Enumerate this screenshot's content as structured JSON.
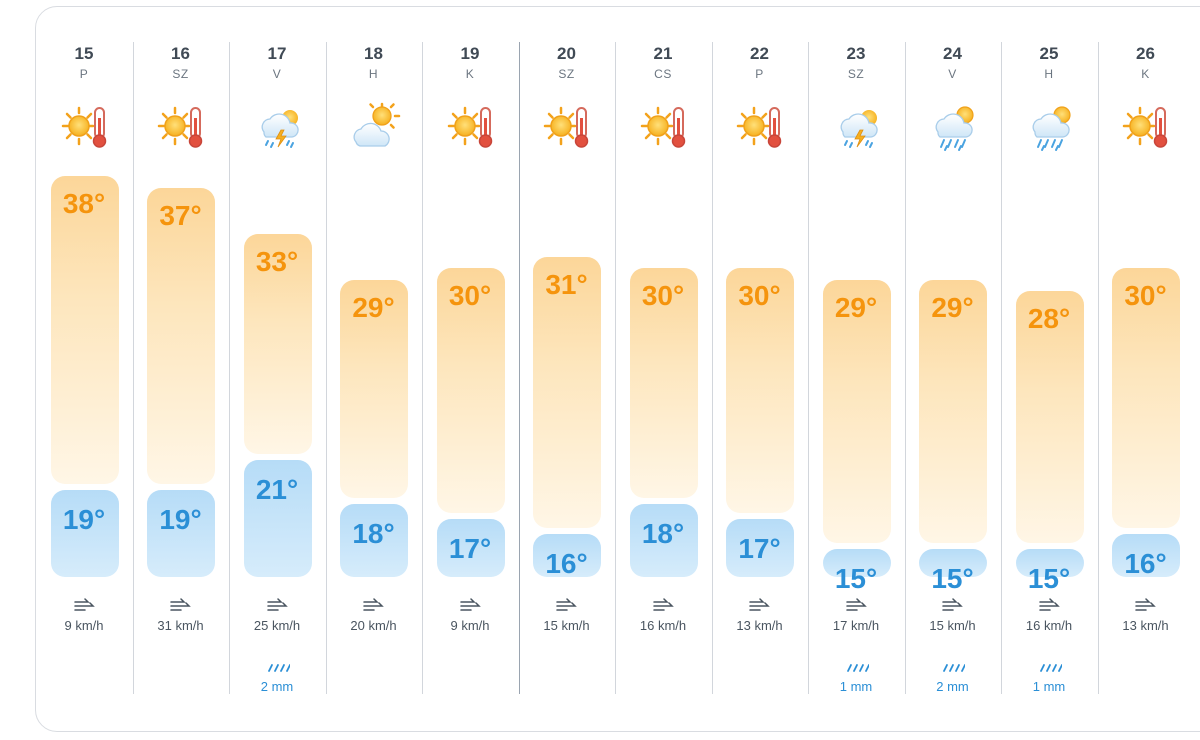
{
  "forecast": {
    "days": [
      {
        "day": "15",
        "weekday": "P",
        "icon": "sunny-hot-icon",
        "high": "38°",
        "low": "19°",
        "high_value": 38,
        "low_value": 19,
        "wind": "9 km/h",
        "rain": ""
      },
      {
        "day": "16",
        "weekday": "SZ",
        "icon": "sunny-hot-icon",
        "high": "37°",
        "low": "19°",
        "high_value": 37,
        "low_value": 19,
        "wind": "31 km/h",
        "rain": ""
      },
      {
        "day": "17",
        "weekday": "V",
        "icon": "thunderstorm-icon",
        "high": "33°",
        "low": "21°",
        "high_value": 33,
        "low_value": 21,
        "wind": "25 km/h",
        "rain": "2 mm"
      },
      {
        "day": "18",
        "weekday": "H",
        "icon": "partly-cloudy-icon",
        "high": "29°",
        "low": "18°",
        "high_value": 29,
        "low_value": 18,
        "wind": "20 km/h",
        "rain": ""
      },
      {
        "day": "19",
        "weekday": "K",
        "icon": "sunny-hot-icon",
        "high": "30°",
        "low": "17°",
        "high_value": 30,
        "low_value": 17,
        "wind": "9 km/h",
        "rain": ""
      },
      {
        "day": "20",
        "weekday": "SZ",
        "icon": "sunny-hot-icon",
        "high": "31°",
        "low": "16°",
        "high_value": 31,
        "low_value": 16,
        "wind": "15 km/h",
        "rain": ""
      },
      {
        "day": "21",
        "weekday": "CS",
        "icon": "sunny-hot-icon",
        "high": "30°",
        "low": "18°",
        "high_value": 30,
        "low_value": 18,
        "wind": "16 km/h",
        "rain": ""
      },
      {
        "day": "22",
        "weekday": "P",
        "icon": "sunny-hot-icon",
        "high": "30°",
        "low": "17°",
        "high_value": 30,
        "low_value": 17,
        "wind": "13 km/h",
        "rain": ""
      },
      {
        "day": "23",
        "weekday": "SZ",
        "icon": "thunderstorm-icon",
        "high": "29°",
        "low": "15°",
        "high_value": 29,
        "low_value": 15,
        "wind": "17 km/h",
        "rain": "1 mm"
      },
      {
        "day": "24",
        "weekday": "V",
        "icon": "sun-rain-icon",
        "high": "29°",
        "low": "15°",
        "high_value": 29,
        "low_value": 15,
        "wind": "15 km/h",
        "rain": "2 mm"
      },
      {
        "day": "25",
        "weekday": "H",
        "icon": "sun-rain-icon",
        "high": "28°",
        "low": "15°",
        "high_value": 28,
        "low_value": 15,
        "wind": "16 km/h",
        "rain": "1 mm"
      },
      {
        "day": "26",
        "weekday": "K",
        "icon": "sunny-hot-icon",
        "high": "30°",
        "low": "16°",
        "high_value": 30,
        "low_value": 16,
        "wind": "13 km/h",
        "rain": ""
      }
    ]
  },
  "colors": {
    "high": "#f5940d",
    "low": "#2b8fd6",
    "rain": "#2b8fd6"
  }
}
